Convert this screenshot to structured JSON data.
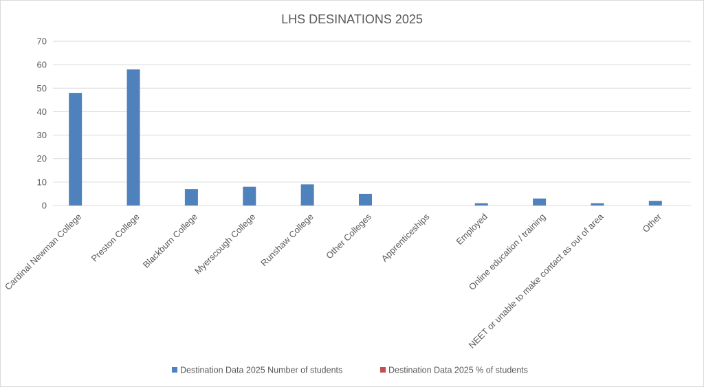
{
  "chart_data": {
    "type": "bar",
    "title": "LHS DESINATIONS 2025",
    "categories": [
      "Cardinal Newman College",
      "Preston College",
      "Blackburn College",
      "Myerscough College",
      "Runshaw College",
      "Other Colleges",
      "Apprenticeships",
      "Employed",
      "Online education / training",
      "NEET or unable to make contact as out of area",
      "Other"
    ],
    "series": [
      {
        "name": "Destination Data 2025 Number of students",
        "color": "#4f81bd",
        "values": [
          48,
          58,
          7,
          8,
          9,
          5,
          0,
          1,
          3,
          1,
          2
        ]
      },
      {
        "name": "Destination Data 2025 % of students",
        "color": "#c0504d",
        "values": [
          0,
          0,
          0,
          0,
          0,
          0,
          0,
          0,
          0,
          0,
          0
        ]
      }
    ],
    "ylim": [
      0,
      70
    ],
    "yticks": [
      0,
      10,
      20,
      30,
      40,
      50,
      60,
      70
    ],
    "grid": true,
    "legend_position": "bottom"
  }
}
